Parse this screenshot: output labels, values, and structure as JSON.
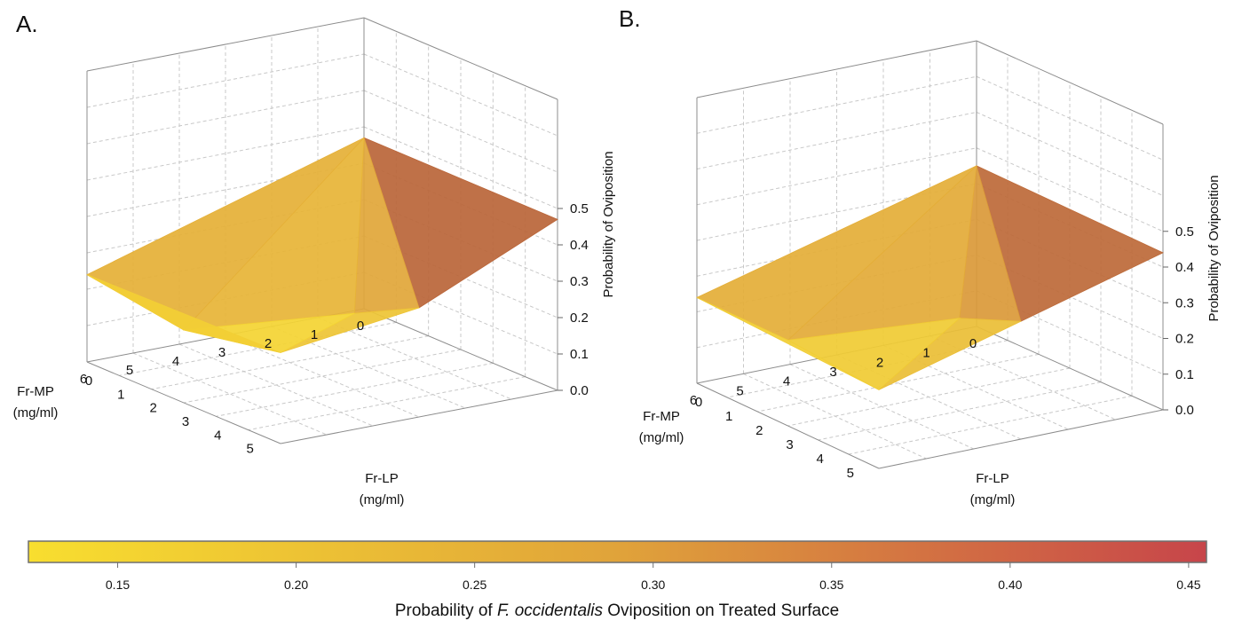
{
  "colors": {
    "low": "#f7dc33",
    "mid": "#e0a33a",
    "high": "#9e3a3a"
  },
  "chart_data": [
    {
      "type": "surface3d",
      "panel_label": "A.",
      "x_label_lines": [
        "Fr-MP",
        "(mg/ml)"
      ],
      "y_label_lines": [
        "Fr-LP",
        "(mg/ml)"
      ],
      "z_label": "Probability of Oviposition",
      "x_ticks": [
        "0",
        "1",
        "2",
        "3",
        "4",
        "5",
        "6"
      ],
      "y_ticks": [
        "0",
        "1",
        "2",
        "3",
        "4",
        "5"
      ],
      "z_ticks": [
        "0.0",
        "0.1",
        "0.2",
        "0.3",
        "0.4",
        "0.5"
      ],
      "z_range": [
        0,
        0.5
      ],
      "vertices": [
        {
          "mp": 0,
          "lp": 6,
          "z": 0.47
        },
        {
          "mp": 0,
          "lp": 0,
          "z": 0.47
        },
        {
          "mp": 6,
          "lp": 0,
          "z": 0.24
        },
        {
          "mp": 6,
          "lp": 6,
          "z": 0.25
        },
        {
          "mp": 3,
          "lp": 6,
          "z": 0.3
        },
        {
          "mp": 3,
          "lp": 4,
          "z": 0.21
        },
        {
          "mp": 6,
          "lp": 3,
          "z": 0.2
        }
      ]
    },
    {
      "type": "surface3d",
      "panel_label": "B.",
      "x_label_lines": [
        "Fr-MP",
        "(mg/ml)"
      ],
      "y_label_lines": [
        "Fr-LP",
        "(mg/ml)"
      ],
      "z_label": "Probability of Oviposition",
      "x_ticks": [
        "0",
        "1",
        "2",
        "3",
        "4",
        "5",
        "6"
      ],
      "y_ticks": [
        "0",
        "1",
        "2",
        "3",
        "4",
        "5"
      ],
      "z_ticks": [
        "0.0",
        "0.1",
        "0.2",
        "0.3",
        "0.4",
        "0.5"
      ],
      "z_range": [
        0,
        0.5
      ],
      "vertices": [
        {
          "mp": 0,
          "lp": 6,
          "z": 0.44
        },
        {
          "mp": 0,
          "lp": 0,
          "z": 0.45
        },
        {
          "mp": 6,
          "lp": 0,
          "z": 0.24
        },
        {
          "mp": 6,
          "lp": 6,
          "z": 0.22
        },
        {
          "mp": 3,
          "lp": 6,
          "z": 0.33
        },
        {
          "mp": 3,
          "lp": 4,
          "z": 0.26
        },
        {
          "mp": 6,
          "lp": 3,
          "z": 0.24
        }
      ]
    }
  ],
  "colorbar": {
    "ticks": [
      "0.15",
      "0.20",
      "0.25",
      "0.30",
      "0.35",
      "0.40",
      "0.45"
    ],
    "range": [
      0.125,
      0.455
    ],
    "title_pre": "Probability of ",
    "title_italic": "F. occidentalis",
    "title_post": " Oviposition on Treated Surface"
  }
}
